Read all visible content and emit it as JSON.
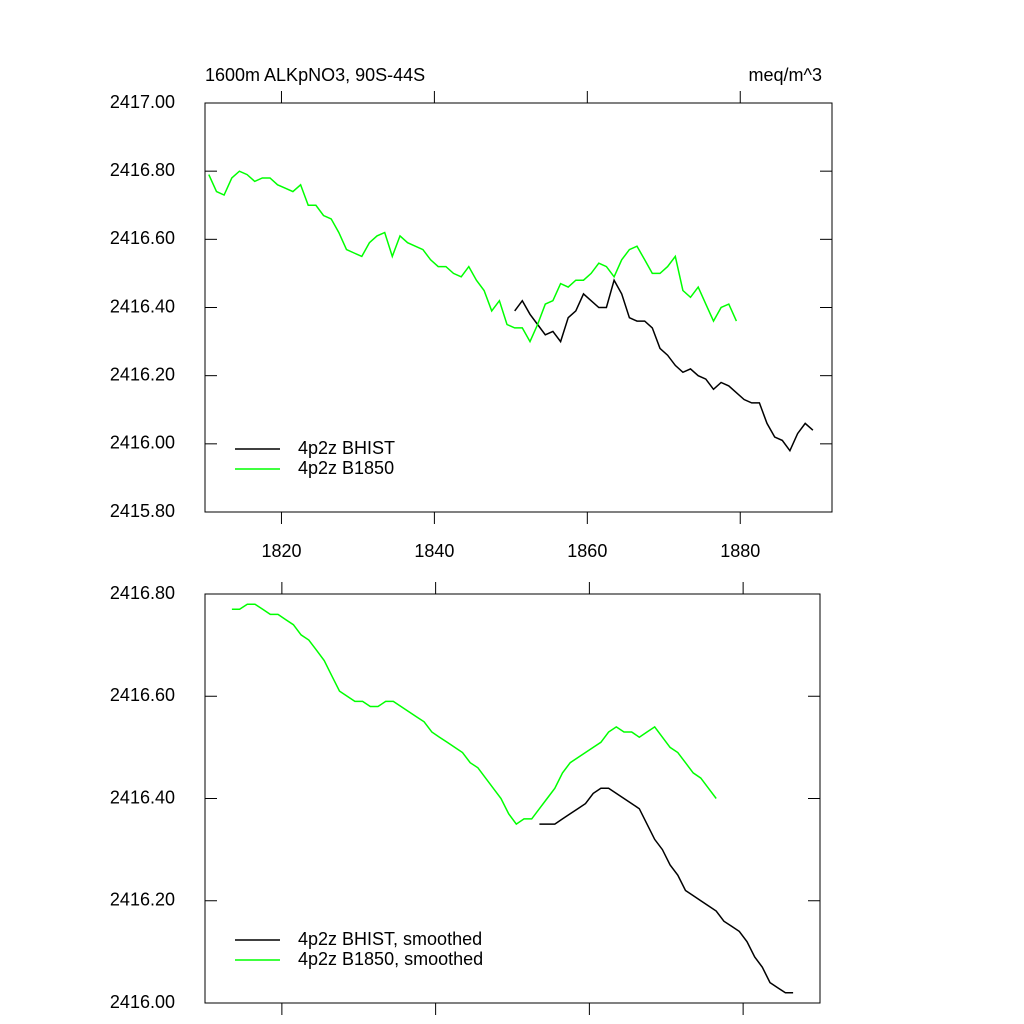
{
  "chart_data": [
    {
      "type": "line",
      "title": "1600m ALKpNO3, 90S-44S",
      "subtitle": "meq/m^3",
      "xlim": [
        1810,
        1892
      ],
      "ylim": [
        2415.8,
        2417
      ],
      "xticks": [
        1820,
        1840,
        1860,
        1880
      ],
      "yticks": [
        {
          "value": 2415.8,
          "label": "2415.80"
        },
        {
          "value": 2416,
          "label": "2416.00"
        },
        {
          "value": 2416.2,
          "label": "2416.20"
        },
        {
          "value": 2416.4,
          "label": "2416.40"
        },
        {
          "value": 2416.6,
          "label": "2416.60"
        },
        {
          "value": 2416.8,
          "label": "2416.80"
        },
        {
          "value": 2417,
          "label": "2417.00"
        }
      ],
      "legend": "lower left",
      "series": [
        {
          "name": "4p2z BHIST",
          "color": "#000000",
          "x": [
            1850.5,
            1851.5,
            1852.5,
            1853.5,
            1854.5,
            1855.5,
            1856.5,
            1857.5,
            1858.5,
            1859.5,
            1860.5,
            1861.5,
            1862.5,
            1863.5,
            1864.5,
            1865.5,
            1866.5,
            1867.5,
            1868.5,
            1869.5,
            1870.5,
            1871.5,
            1872.5,
            1873.5,
            1874.5,
            1875.5,
            1876.5,
            1877.5,
            1878.5,
            1879.5,
            1880.5,
            1881.5,
            1882.5,
            1883.5,
            1884.5,
            1885.5,
            1886.5,
            1887.5,
            1888.5,
            1889.5
          ],
          "values": [
            2416.39,
            2416.42,
            2416.38,
            2416.35,
            2416.32,
            2416.33,
            2416.3,
            2416.37,
            2416.39,
            2416.44,
            2416.42,
            2416.4,
            2416.4,
            2416.48,
            2416.44,
            2416.37,
            2416.36,
            2416.36,
            2416.34,
            2416.28,
            2416.26,
            2416.23,
            2416.21,
            2416.22,
            2416.2,
            2416.19,
            2416.16,
            2416.18,
            2416.17,
            2416.15,
            2416.13,
            2416.12,
            2416.12,
            2416.06,
            2416.02,
            2416.01,
            2415.98,
            2416.03,
            2416.06,
            2416.04
          ]
        },
        {
          "name": "4p2z B1850",
          "color": "#00ff00",
          "x": [
            1810.5,
            1811.5,
            1812.5,
            1813.5,
            1814.5,
            1815.5,
            1816.5,
            1817.5,
            1818.5,
            1819.5,
            1820.5,
            1821.5,
            1822.5,
            1823.5,
            1824.5,
            1825.5,
            1826.5,
            1827.5,
            1828.5,
            1829.5,
            1830.5,
            1831.5,
            1832.5,
            1833.5,
            1834.5,
            1835.5,
            1836.5,
            1837.5,
            1838.5,
            1839.5,
            1840.5,
            1841.5,
            1842.5,
            1843.5,
            1844.5,
            1845.5,
            1846.5,
            1847.5,
            1848.5,
            1849.5,
            1850.5,
            1851.5,
            1852.5,
            1853.5,
            1854.5,
            1855.5,
            1856.5,
            1857.5,
            1858.5,
            1859.5,
            1860.5,
            1861.5,
            1862.5,
            1863.5,
            1864.5,
            1865.5,
            1866.5,
            1867.5,
            1868.5,
            1869.5,
            1870.5,
            1871.5,
            1872.5,
            1873.5,
            1874.5,
            1875.5,
            1876.5,
            1877.5,
            1878.5,
            1879.5
          ],
          "values": [
            2416.79,
            2416.74,
            2416.73,
            2416.78,
            2416.8,
            2416.79,
            2416.77,
            2416.78,
            2416.78,
            2416.76,
            2416.75,
            2416.74,
            2416.76,
            2416.7,
            2416.7,
            2416.67,
            2416.66,
            2416.62,
            2416.57,
            2416.56,
            2416.55,
            2416.59,
            2416.61,
            2416.62,
            2416.55,
            2416.61,
            2416.59,
            2416.58,
            2416.57,
            2416.54,
            2416.52,
            2416.52,
            2416.5,
            2416.49,
            2416.52,
            2416.48,
            2416.45,
            2416.39,
            2416.42,
            2416.35,
            2416.34,
            2416.34,
            2416.3,
            2416.35,
            2416.41,
            2416.42,
            2416.47,
            2416.46,
            2416.48,
            2416.48,
            2416.5,
            2416.53,
            2416.52,
            2416.49,
            2416.54,
            2416.57,
            2416.58,
            2416.54,
            2416.5,
            2416.5,
            2416.52,
            2416.55,
            2416.45,
            2416.43,
            2416.46,
            2416.41,
            2416.36,
            2416.4,
            2416.41,
            2416.36
          ]
        }
      ]
    },
    {
      "type": "line",
      "xlim": [
        1810,
        1890
      ],
      "ylim": [
        2416,
        2416.8
      ],
      "xticks": [
        {
          "value": 1820,
          "label": null
        },
        {
          "value": 1840,
          "label": null
        },
        {
          "value": 1860,
          "label": null
        },
        {
          "value": 1880,
          "label": null
        }
      ],
      "yticks": [
        {
          "value": 2416,
          "label": "2416.00"
        },
        {
          "value": 2416.2,
          "label": "2416.20"
        },
        {
          "value": 2416.4,
          "label": "2416.40"
        },
        {
          "value": 2416.6,
          "label": "2416.60"
        },
        {
          "value": 2416.8,
          "label": "2416.80"
        }
      ],
      "legend": "lower left",
      "series": [
        {
          "name": "4p2z BHIST, smoothed",
          "color": "#000000",
          "x": [
            1853.5,
            1854.5,
            1855.5,
            1856.5,
            1857.5,
            1858.5,
            1859.5,
            1860.5,
            1861.5,
            1862.5,
            1863.5,
            1864.5,
            1865.5,
            1866.5,
            1867.5,
            1868.5,
            1869.5,
            1870.5,
            1871.5,
            1872.5,
            1873.5,
            1874.5,
            1875.5,
            1876.5,
            1877.5,
            1878.5,
            1879.5,
            1880.5,
            1881.5,
            1882.5,
            1883.5,
            1884.5,
            1885.5,
            1886.5
          ],
          "values": [
            2416.35,
            2416.35,
            2416.35,
            2416.36,
            2416.37,
            2416.38,
            2416.39,
            2416.41,
            2416.42,
            2416.42,
            2416.41,
            2416.4,
            2416.39,
            2416.38,
            2416.35,
            2416.32,
            2416.3,
            2416.27,
            2416.25,
            2416.22,
            2416.21,
            2416.2,
            2416.19,
            2416.18,
            2416.16,
            2416.15,
            2416.14,
            2416.12,
            2416.09,
            2416.07,
            2416.04,
            2416.03,
            2416.02,
            2416.02
          ]
        },
        {
          "name": "4p2z B1850, smoothed",
          "color": "#00ff00",
          "x": [
            1813.5,
            1814.5,
            1815.5,
            1816.5,
            1817.5,
            1818.5,
            1819.5,
            1820.5,
            1821.5,
            1822.5,
            1823.5,
            1824.5,
            1825.5,
            1826.5,
            1827.5,
            1828.5,
            1829.5,
            1830.5,
            1831.5,
            1832.5,
            1833.5,
            1834.5,
            1835.5,
            1836.5,
            1837.5,
            1838.5,
            1839.5,
            1840.5,
            1841.5,
            1842.5,
            1843.5,
            1844.5,
            1845.5,
            1846.5,
            1847.5,
            1848.5,
            1849.5,
            1850.5,
            1851.5,
            1852.5,
            1853.5,
            1854.5,
            1855.5,
            1856.5,
            1857.5,
            1858.5,
            1859.5,
            1860.5,
            1861.5,
            1862.5,
            1863.5,
            1864.5,
            1865.5,
            1866.5,
            1867.5,
            1868.5,
            1869.5,
            1870.5,
            1871.5,
            1872.5,
            1873.5,
            1874.5,
            1875.5,
            1876.5
          ],
          "values": [
            2416.77,
            2416.77,
            2416.78,
            2416.78,
            2416.77,
            2416.76,
            2416.76,
            2416.75,
            2416.74,
            2416.72,
            2416.71,
            2416.69,
            2416.67,
            2416.64,
            2416.61,
            2416.6,
            2416.59,
            2416.59,
            2416.58,
            2416.58,
            2416.59,
            2416.59,
            2416.58,
            2416.57,
            2416.56,
            2416.55,
            2416.53,
            2416.52,
            2416.51,
            2416.5,
            2416.49,
            2416.47,
            2416.46,
            2416.44,
            2416.42,
            2416.4,
            2416.37,
            2416.35,
            2416.36,
            2416.36,
            2416.38,
            2416.4,
            2416.42,
            2416.45,
            2416.47,
            2416.48,
            2416.49,
            2416.5,
            2416.51,
            2416.53,
            2416.54,
            2416.53,
            2416.53,
            2416.52,
            2416.53,
            2416.54,
            2416.52,
            2416.5,
            2416.49,
            2416.47,
            2416.45,
            2416.44,
            2416.42,
            2416.4
          ]
        }
      ]
    }
  ]
}
